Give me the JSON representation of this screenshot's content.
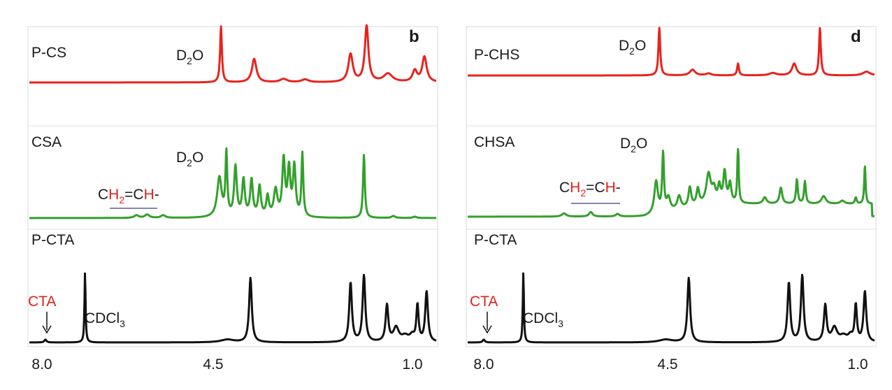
{
  "chart_data": [
    {
      "type": "line",
      "panel_label": "b",
      "x_ticks": [
        "8.0",
        "4.5",
        "1.0"
      ],
      "x_range_ppm": [
        8.3,
        0.7
      ],
      "x_reversed": true,
      "series": [
        {
          "name": "P-CS",
          "color": "#e8231d",
          "solvent_label": "D2O",
          "peaks": [
            {
              "x": 4.72,
              "h": 1.0,
              "w": 0.02
            },
            {
              "x": 4.1,
              "h": 0.42,
              "w": 0.05
            },
            {
              "x": 3.55,
              "h": 0.06,
              "w": 0.08
            },
            {
              "x": 3.15,
              "h": 0.05,
              "w": 0.08
            },
            {
              "x": 2.3,
              "h": 0.5,
              "w": 0.05
            },
            {
              "x": 2.0,
              "h": 1.0,
              "w": 0.04
            },
            {
              "x": 1.6,
              "h": 0.15,
              "w": 0.1
            },
            {
              "x": 1.1,
              "h": 0.2,
              "w": 0.05
            },
            {
              "x": 0.92,
              "h": 0.45,
              "w": 0.05
            }
          ]
        },
        {
          "name": "CSA",
          "color": "#33a02c",
          "solvent_label": "D2O",
          "annotation": "CH2=CH-",
          "peaks": [
            {
              "x": 6.3,
              "h": 0.04,
              "w": 0.05
            },
            {
              "x": 6.1,
              "h": 0.05,
              "w": 0.05
            },
            {
              "x": 5.8,
              "h": 0.04,
              "w": 0.05
            },
            {
              "x": 4.75,
              "h": 0.6,
              "w": 0.05
            },
            {
              "x": 4.62,
              "h": 0.95,
              "w": 0.02
            },
            {
              "x": 4.45,
              "h": 0.75,
              "w": 0.03
            },
            {
              "x": 4.3,
              "h": 0.55,
              "w": 0.03
            },
            {
              "x": 4.15,
              "h": 0.55,
              "w": 0.03
            },
            {
              "x": 4.0,
              "h": 0.45,
              "w": 0.03
            },
            {
              "x": 3.85,
              "h": 0.3,
              "w": 0.03
            },
            {
              "x": 3.7,
              "h": 0.4,
              "w": 0.04
            },
            {
              "x": 3.55,
              "h": 0.85,
              "w": 0.03
            },
            {
              "x": 3.45,
              "h": 0.7,
              "w": 0.03
            },
            {
              "x": 3.35,
              "h": 0.75,
              "w": 0.03
            },
            {
              "x": 3.2,
              "h": 0.95,
              "w": 0.02
            },
            {
              "x": 2.05,
              "h": 0.95,
              "w": 0.02
            },
            {
              "x": 1.5,
              "h": 0.03,
              "w": 0.04
            },
            {
              "x": 1.1,
              "h": 0.02,
              "w": 0.04
            }
          ]
        },
        {
          "name": "P-CTA",
          "color": "#111111",
          "solvent_label": "CDCl3",
          "marker_label": "CTA",
          "peaks": [
            {
              "x": 8.0,
              "h": 0.04,
              "w": 0.025
            },
            {
              "x": 7.26,
              "h": 1.0,
              "w": 0.012
            },
            {
              "x": 4.6,
              "h": 0.04,
              "w": 0.15
            },
            {
              "x": 4.17,
              "h": 0.92,
              "w": 0.03
            },
            {
              "x": 2.3,
              "h": 0.85,
              "w": 0.03
            },
            {
              "x": 2.05,
              "h": 0.95,
              "w": 0.03
            },
            {
              "x": 1.62,
              "h": 0.52,
              "w": 0.03
            },
            {
              "x": 1.45,
              "h": 0.2,
              "w": 0.06
            },
            {
              "x": 1.28,
              "h": 0.08,
              "w": 0.08
            },
            {
              "x": 1.15,
              "h": 0.08,
              "w": 0.05
            },
            {
              "x": 1.05,
              "h": 0.52,
              "w": 0.025
            },
            {
              "x": 0.88,
              "h": 0.72,
              "w": 0.03
            }
          ]
        }
      ]
    },
    {
      "type": "line",
      "panel_label": "d",
      "x_ticks": [
        "8.0",
        "4.5",
        "1.0"
      ],
      "x_range_ppm": [
        8.3,
        0.7
      ],
      "x_reversed": true,
      "series": [
        {
          "name": "P-CHS",
          "color": "#e8231d",
          "solvent_label": "D2O",
          "peaks": [
            {
              "x": 4.72,
              "h": 1.0,
              "w": 0.02
            },
            {
              "x": 4.1,
              "h": 0.12,
              "w": 0.06
            },
            {
              "x": 3.8,
              "h": 0.04,
              "w": 0.06
            },
            {
              "x": 3.25,
              "h": 0.25,
              "w": 0.02
            },
            {
              "x": 2.6,
              "h": 0.05,
              "w": 0.08
            },
            {
              "x": 2.2,
              "h": 0.25,
              "w": 0.05
            },
            {
              "x": 1.72,
              "h": 1.0,
              "w": 0.02
            },
            {
              "x": 0.85,
              "h": 0.08,
              "w": 0.08
            }
          ]
        },
        {
          "name": "CHSA",
          "color": "#33a02c",
          "solvent_label": "D2O",
          "annotation": "CH2=CH-",
          "peaks": [
            {
              "x": 6.5,
              "h": 0.05,
              "w": 0.05
            },
            {
              "x": 6.0,
              "h": 0.07,
              "w": 0.04
            },
            {
              "x": 5.5,
              "h": 0.04,
              "w": 0.04
            },
            {
              "x": 4.78,
              "h": 0.5,
              "w": 0.04
            },
            {
              "x": 4.65,
              "h": 0.9,
              "w": 0.02
            },
            {
              "x": 4.55,
              "h": 0.2,
              "w": 0.04
            },
            {
              "x": 4.35,
              "h": 0.2,
              "w": 0.04
            },
            {
              "x": 4.15,
              "h": 0.3,
              "w": 0.03
            },
            {
              "x": 4.0,
              "h": 0.25,
              "w": 0.03
            },
            {
              "x": 3.8,
              "h": 0.45,
              "w": 0.05
            },
            {
              "x": 3.7,
              "h": 0.2,
              "w": 0.04
            },
            {
              "x": 3.6,
              "h": 0.25,
              "w": 0.03
            },
            {
              "x": 3.5,
              "h": 0.48,
              "w": 0.03
            },
            {
              "x": 3.4,
              "h": 0.3,
              "w": 0.03
            },
            {
              "x": 3.25,
              "h": 0.95,
              "w": 0.015
            },
            {
              "x": 2.75,
              "h": 0.1,
              "w": 0.04
            },
            {
              "x": 2.45,
              "h": 0.25,
              "w": 0.03
            },
            {
              "x": 2.15,
              "h": 0.38,
              "w": 0.02
            },
            {
              "x": 2.0,
              "h": 0.35,
              "w": 0.02
            },
            {
              "x": 1.65,
              "h": 0.12,
              "w": 0.05
            },
            {
              "x": 1.3,
              "h": 0.05,
              "w": 0.05
            },
            {
              "x": 1.05,
              "h": 0.1,
              "w": 0.02
            },
            {
              "x": 0.88,
              "h": 0.6,
              "w": 0.015
            }
          ]
        },
        {
          "name": "P-CTA",
          "color": "#111111",
          "solvent_label": "CDCl3",
          "marker_label": "CTA",
          "peaks": [
            {
              "x": 8.0,
              "h": 0.04,
              "w": 0.025
            },
            {
              "x": 7.26,
              "h": 1.0,
              "w": 0.012
            },
            {
              "x": 4.6,
              "h": 0.04,
              "w": 0.15
            },
            {
              "x": 4.17,
              "h": 0.92,
              "w": 0.03
            },
            {
              "x": 2.3,
              "h": 0.85,
              "w": 0.03
            },
            {
              "x": 2.05,
              "h": 0.95,
              "w": 0.03
            },
            {
              "x": 1.62,
              "h": 0.52,
              "w": 0.03
            },
            {
              "x": 1.45,
              "h": 0.2,
              "w": 0.06
            },
            {
              "x": 1.28,
              "h": 0.08,
              "w": 0.08
            },
            {
              "x": 1.15,
              "h": 0.08,
              "w": 0.05
            },
            {
              "x": 1.05,
              "h": 0.52,
              "w": 0.025
            },
            {
              "x": 0.88,
              "h": 0.72,
              "w": 0.03
            }
          ]
        }
      ]
    }
  ]
}
